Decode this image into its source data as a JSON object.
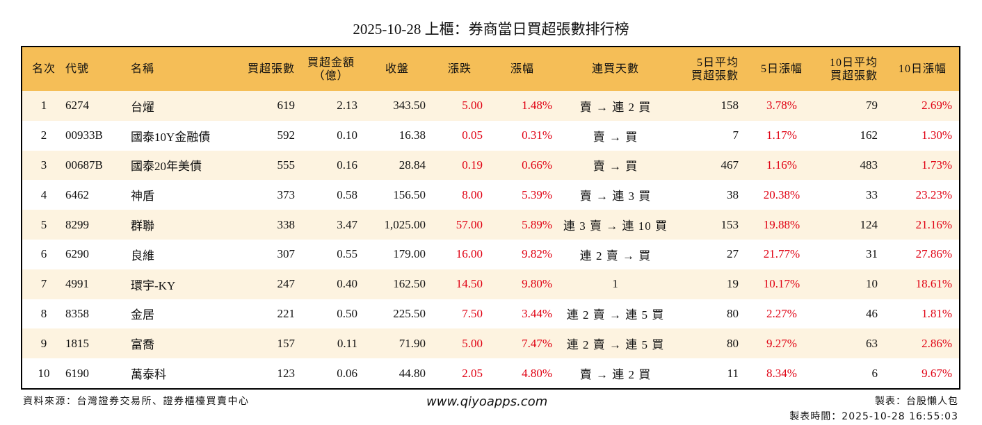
{
  "title": "2025-10-28 上櫃：券商當日買超張數排行榜",
  "colors": {
    "header_bg": "#F5BE57",
    "stripe_bg": "#FDF3E0",
    "positive": "#E00012",
    "border": "#000000"
  },
  "table": {
    "headers": [
      {
        "line1": "名次",
        "line2": ""
      },
      {
        "line1": "代號",
        "line2": ""
      },
      {
        "line1": "名稱",
        "line2": ""
      },
      {
        "line1": "買超張數",
        "line2": ""
      },
      {
        "line1": "買超金額",
        "line2": "（億）"
      },
      {
        "line1": "收盤",
        "line2": ""
      },
      {
        "line1": "漲跌",
        "line2": ""
      },
      {
        "line1": "漲幅",
        "line2": ""
      },
      {
        "line1": "連買天數",
        "line2": ""
      },
      {
        "line1": "5日平均",
        "line2": "買超張數"
      },
      {
        "line1": "5日漲幅",
        "line2": ""
      },
      {
        "line1": "10日平均",
        "line2": "買超張數"
      },
      {
        "line1": "10日漲幅",
        "line2": ""
      }
    ],
    "rows": [
      {
        "rank": "1",
        "code": "6274",
        "name": "台燿",
        "net_buy": "619",
        "amount": "2.13",
        "close": "343.50",
        "change": "5.00",
        "pct": "1.48%",
        "streak": "賣 → 連 2 買",
        "avg5": "158",
        "pct5": "3.78%",
        "avg10": "79",
        "pct10": "2.69%"
      },
      {
        "rank": "2",
        "code": "00933B",
        "name": "國泰10Y金融債",
        "net_buy": "592",
        "amount": "0.10",
        "close": "16.38",
        "change": "0.05",
        "pct": "0.31%",
        "streak": "賣 → 買",
        "avg5": "7",
        "pct5": "1.17%",
        "avg10": "162",
        "pct10": "1.30%"
      },
      {
        "rank": "3",
        "code": "00687B",
        "name": "國泰20年美債",
        "net_buy": "555",
        "amount": "0.16",
        "close": "28.84",
        "change": "0.19",
        "pct": "0.66%",
        "streak": "賣 → 買",
        "avg5": "467",
        "pct5": "1.16%",
        "avg10": "483",
        "pct10": "1.73%"
      },
      {
        "rank": "4",
        "code": "6462",
        "name": "神盾",
        "net_buy": "373",
        "amount": "0.58",
        "close": "156.50",
        "change": "8.00",
        "pct": "5.39%",
        "streak": "賣 → 連 3 買",
        "avg5": "38",
        "pct5": "20.38%",
        "avg10": "33",
        "pct10": "23.23%"
      },
      {
        "rank": "5",
        "code": "8299",
        "name": "群聯",
        "net_buy": "338",
        "amount": "3.47",
        "close": "1,025.00",
        "change": "57.00",
        "pct": "5.89%",
        "streak": "連 3 賣 → 連 10 買",
        "avg5": "153",
        "pct5": "19.88%",
        "avg10": "124",
        "pct10": "21.16%"
      },
      {
        "rank": "6",
        "code": "6290",
        "name": "良維",
        "net_buy": "307",
        "amount": "0.55",
        "close": "179.00",
        "change": "16.00",
        "pct": "9.82%",
        "streak": "連 2 賣 → 買",
        "avg5": "27",
        "pct5": "21.77%",
        "avg10": "31",
        "pct10": "27.86%"
      },
      {
        "rank": "7",
        "code": "4991",
        "name": "環宇-KY",
        "net_buy": "247",
        "amount": "0.40",
        "close": "162.50",
        "change": "14.50",
        "pct": "9.80%",
        "streak": "1",
        "avg5": "19",
        "pct5": "10.17%",
        "avg10": "10",
        "pct10": "18.61%"
      },
      {
        "rank": "8",
        "code": "8358",
        "name": "金居",
        "net_buy": "221",
        "amount": "0.50",
        "close": "225.50",
        "change": "7.50",
        "pct": "3.44%",
        "streak": "連 2 賣 → 連 5 買",
        "avg5": "80",
        "pct5": "2.27%",
        "avg10": "46",
        "pct10": "1.81%"
      },
      {
        "rank": "9",
        "code": "1815",
        "name": "富喬",
        "net_buy": "157",
        "amount": "0.11",
        "close": "71.90",
        "change": "5.00",
        "pct": "7.47%",
        "streak": "連 2 賣 → 連 5 買",
        "avg5": "80",
        "pct5": "9.27%",
        "avg10": "63",
        "pct10": "2.86%"
      },
      {
        "rank": "10",
        "code": "6190",
        "name": "萬泰科",
        "net_buy": "123",
        "amount": "0.06",
        "close": "44.80",
        "change": "2.05",
        "pct": "4.80%",
        "streak": "賣 → 連 2 買",
        "avg5": "11",
        "pct5": "8.34%",
        "avg10": "6",
        "pct10": "9.67%"
      }
    ]
  },
  "footer": {
    "source": "資料來源：台灣證券交易所、證券櫃檯買賣中心",
    "website": "www.qiyoapps.com",
    "author": "製表：台股懶人包",
    "generated_at": "製表時間：2025-10-28 16:55:03"
  }
}
